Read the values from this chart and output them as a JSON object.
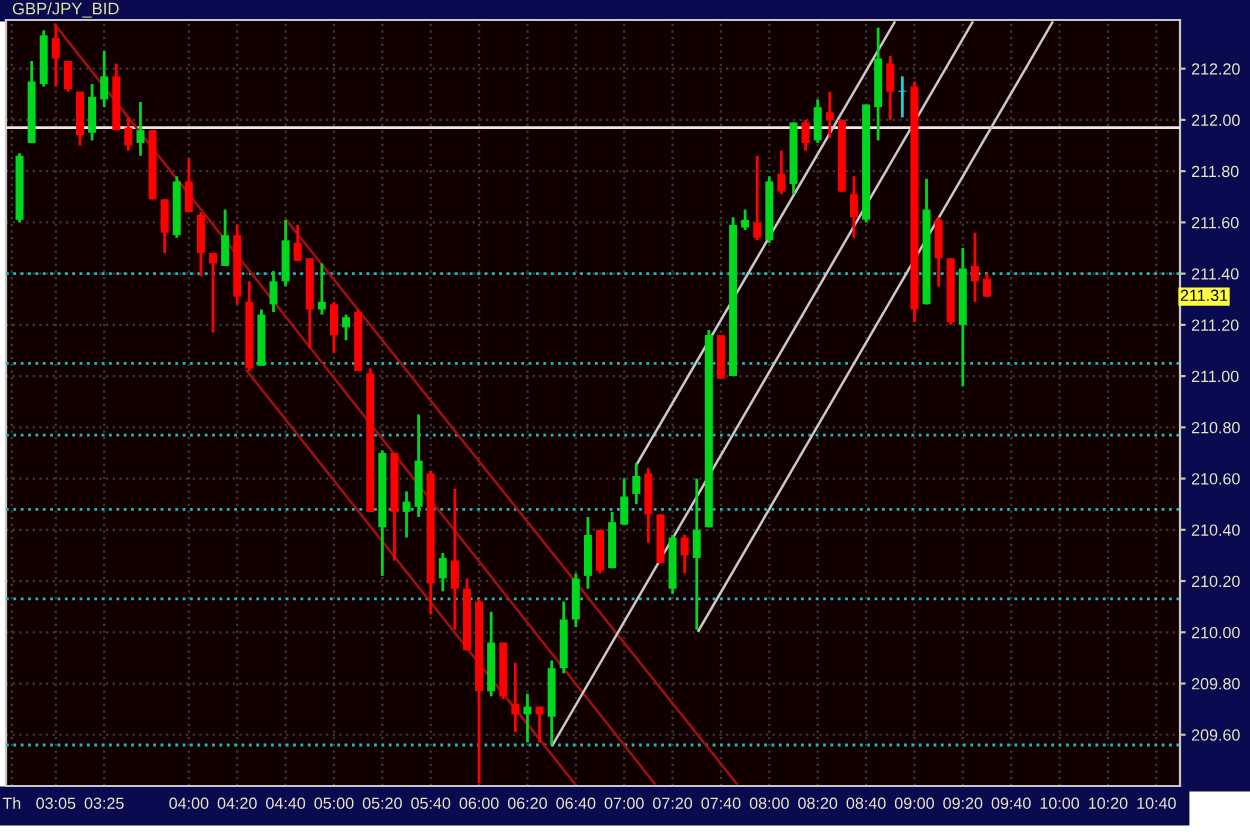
{
  "chart_data": {
    "type": "candlestick",
    "title": "GBP/JPY_BID",
    "x": [
      2.8333,
      2.9167,
      3.0,
      3.0833,
      3.1667,
      3.25,
      3.3333,
      3.4167,
      3.5,
      3.5833,
      3.6667,
      3.75,
      3.8333,
      3.9167,
      4.0,
      4.0833,
      4.1667,
      4.25,
      4.3333,
      4.4167,
      4.5,
      4.5833,
      4.6667,
      4.75,
      4.8333,
      4.9167,
      5.0,
      5.0833,
      5.1667,
      5.25,
      5.3333,
      5.4167,
      5.5,
      5.5833,
      5.6667,
      5.75,
      5.8333,
      5.9167,
      6.0,
      6.0833,
      6.1667,
      6.25,
      6.3333,
      6.4167,
      6.5,
      6.5833,
      6.6667,
      6.75,
      6.8333,
      6.9167,
      7.0,
      7.0833,
      7.1667,
      7.25,
      7.3333,
      7.4167,
      7.5,
      7.5833,
      7.6667,
      7.75,
      7.8333,
      7.9167,
      8.0,
      8.0833,
      8.1667,
      8.25,
      8.3333,
      8.4167,
      8.5,
      8.5833,
      8.6667,
      8.75,
      8.8333,
      8.9167,
      9.0,
      9.0833,
      9.1667,
      9.25,
      9.3333,
      9.4167,
      9.5
    ],
    "ohlc": [
      [
        211.61,
        211.87,
        211.6,
        211.86
      ],
      [
        211.91,
        212.23,
        211.91,
        212.15
      ],
      [
        212.14,
        212.35,
        212.13,
        212.33
      ],
      [
        212.32,
        212.37,
        212.13,
        212.24
      ],
      [
        212.23,
        212.23,
        212.11,
        212.12
      ],
      [
        212.11,
        212.11,
        211.9,
        211.94
      ],
      [
        211.95,
        212.14,
        211.92,
        212.09
      ],
      [
        212.08,
        212.27,
        212.05,
        212.17
      ],
      [
        212.17,
        212.22,
        211.96,
        211.96
      ],
      [
        211.97,
        212.01,
        211.88,
        211.9
      ],
      [
        211.91,
        212.07,
        211.86,
        211.96
      ],
      [
        211.96,
        211.96,
        211.69,
        211.69
      ],
      [
        211.69,
        211.69,
        211.48,
        211.56
      ],
      [
        211.55,
        211.78,
        211.54,
        211.76
      ],
      [
        211.76,
        211.85,
        211.64,
        211.64
      ],
      [
        211.63,
        211.64,
        211.39,
        211.48
      ],
      [
        211.48,
        211.48,
        211.17,
        211.44
      ],
      [
        211.43,
        211.65,
        211.43,
        211.55
      ],
      [
        211.55,
        211.59,
        211.28,
        211.31
      ],
      [
        211.29,
        211.37,
        211.02,
        211.03
      ],
      [
        211.04,
        211.26,
        211.04,
        211.24
      ],
      [
        211.28,
        211.41,
        211.25,
        211.37
      ],
      [
        211.37,
        211.61,
        211.35,
        211.53
      ],
      [
        211.52,
        211.59,
        211.45,
        211.45
      ],
      [
        211.46,
        211.46,
        211.11,
        211.26
      ],
      [
        211.26,
        211.44,
        211.24,
        211.29
      ],
      [
        211.28,
        211.29,
        211.09,
        211.16
      ],
      [
        211.19,
        211.24,
        211.14,
        211.23
      ],
      [
        211.25,
        211.26,
        211.02,
        211.02
      ],
      [
        211.01,
        211.03,
        210.47,
        210.47
      ],
      [
        210.41,
        210.71,
        210.22,
        210.7
      ],
      [
        210.7,
        210.7,
        210.28,
        210.47
      ],
      [
        210.47,
        210.55,
        210.37,
        210.51
      ],
      [
        210.49,
        210.85,
        210.45,
        210.67
      ],
      [
        210.62,
        210.63,
        210.07,
        210.19
      ],
      [
        210.21,
        210.31,
        210.16,
        210.29
      ],
      [
        210.28,
        210.56,
        210.01,
        210.17
      ],
      [
        210.17,
        210.21,
        209.93,
        209.93
      ],
      [
        210.12,
        210.13,
        209.41,
        209.77
      ],
      [
        209.77,
        210.08,
        209.75,
        209.96
      ],
      [
        209.96,
        209.96,
        209.74,
        209.75
      ],
      [
        209.72,
        209.88,
        209.61,
        209.68
      ],
      [
        209.68,
        209.76,
        209.57,
        209.71
      ],
      [
        209.71,
        209.71,
        209.57,
        209.68
      ],
      [
        209.67,
        209.89,
        209.56,
        209.86
      ],
      [
        209.86,
        210.12,
        209.84,
        210.05
      ],
      [
        210.05,
        210.23,
        210.02,
        210.21
      ],
      [
        210.22,
        210.45,
        210.17,
        210.38
      ],
      [
        210.4,
        210.4,
        210.23,
        210.24
      ],
      [
        210.25,
        210.47,
        210.25,
        210.43
      ],
      [
        210.42,
        210.6,
        210.42,
        210.53
      ],
      [
        210.54,
        210.66,
        210.5,
        210.61
      ],
      [
        210.62,
        210.64,
        210.35,
        210.46
      ],
      [
        210.46,
        210.46,
        210.27,
        210.27
      ],
      [
        210.17,
        210.38,
        210.15,
        210.37
      ],
      [
        210.37,
        210.38,
        210.23,
        210.3
      ],
      [
        210.29,
        210.6,
        210.01,
        210.4
      ],
      [
        210.41,
        211.18,
        210.41,
        211.16
      ],
      [
        211.16,
        211.16,
        210.99,
        210.99
      ],
      [
        211.0,
        211.62,
        211.0,
        211.59
      ],
      [
        211.58,
        211.65,
        211.57,
        211.61
      ],
      [
        211.6,
        211.86,
        211.53,
        211.54
      ],
      [
        211.53,
        211.78,
        211.52,
        211.76
      ],
      [
        211.79,
        211.88,
        211.71,
        211.72
      ],
      [
        211.75,
        211.99,
        211.71,
        211.99
      ],
      [
        211.99,
        212.0,
        211.88,
        211.91
      ],
      [
        211.92,
        212.08,
        211.91,
        212.05
      ],
      [
        212.03,
        212.11,
        211.93,
        212.0
      ],
      [
        212.0,
        212.0,
        211.72,
        211.72
      ],
      [
        211.71,
        211.78,
        211.54,
        211.62
      ],
      [
        211.61,
        212.06,
        211.6,
        212.06
      ],
      [
        212.05,
        212.36,
        211.92,
        212.24
      ],
      [
        212.22,
        212.25,
        212.0,
        212.11
      ],
      [
        212.11,
        212.17,
        212.01,
        212.11
      ],
      [
        212.13,
        212.15,
        211.21,
        211.26
      ],
      [
        211.28,
        211.77,
        211.28,
        211.65
      ],
      [
        211.61,
        211.62,
        211.35,
        211.46
      ],
      [
        211.46,
        211.46,
        211.2,
        211.21
      ],
      [
        211.2,
        211.5,
        210.96,
        211.42
      ],
      [
        211.43,
        211.56,
        211.29,
        211.37
      ],
      [
        211.38,
        211.4,
        211.31,
        211.31
      ]
    ],
    "colors": [
      "#00d820",
      "#00d820",
      "#00d820",
      "#ff0000",
      "#ff0000",
      "#ff0000",
      "#00d820",
      "#00d820",
      "#ff0000",
      "#ff0000",
      "#00d820",
      "#ff0000",
      "#ff0000",
      "#00d820",
      "#ff0000",
      "#ff0000",
      "#ff0000",
      "#00d820",
      "#ff0000",
      "#ff0000",
      "#00d820",
      "#00d820",
      "#00d820",
      "#ff0000",
      "#ff0000",
      "#00d820",
      "#ff0000",
      "#00d820",
      "#ff0000",
      "#ff0000",
      "#00d820",
      "#ff0000",
      "#00d820",
      "#00d820",
      "#ff0000",
      "#00d820",
      "#ff0000",
      "#ff0000",
      "#ff0000",
      "#00d820",
      "#ff0000",
      "#ff0000",
      "#00d820",
      "#ff0000",
      "#00d820",
      "#00d820",
      "#00d820",
      "#00d820",
      "#ff0000",
      "#00d820",
      "#00d820",
      "#00d820",
      "#ff0000",
      "#ff0000",
      "#00d820",
      "#ff0000",
      "#00d820",
      "#00d820",
      "#ff0000",
      "#00d820",
      "#00d820",
      "#ff0000",
      "#00d820",
      "#ff0000",
      "#00d820",
      "#ff0000",
      "#00d820",
      "#ff0000",
      "#ff0000",
      "#ff0000",
      "#00d820",
      "#00d820",
      "#ff0000",
      "#20d0d0",
      "#ff0000",
      "#00d820",
      "#ff0000",
      "#ff0000",
      "#00d820",
      "#ff0000",
      "#ff0000"
    ],
    "series": [
      {
        "type": "line",
        "color": "#a01010",
        "x": [
          4.675,
          7.774
        ],
        "values": [
          211.607,
          209.41
        ]
      },
      {
        "type": "line",
        "color": "#a01010",
        "x": [
          3.077,
          7.209
        ],
        "values": [
          212.372,
          209.41
        ]
      },
      {
        "type": "line",
        "color": "#a01010",
        "x": [
          4.399,
          6.658
        ],
        "values": [
          211.021,
          209.41
        ]
      },
      {
        "type": "line",
        "color": "#c8c8c8",
        "x": [
          6.507,
          9.399
        ],
        "values": [
          209.561,
          212.38
        ]
      },
      {
        "type": "line",
        "color": "#c8c8c8",
        "x": [
          7.085,
          8.862
        ],
        "values": [
          210.654,
          212.38
        ]
      },
      {
        "type": "line",
        "color": "#c8c8c8",
        "x": [
          7.512,
          9.95
        ],
        "values": [
          210.006,
          212.38
        ]
      }
    ],
    "ref_lines": [
      {
        "axis": "y",
        "value": 211.97,
        "color": "#e8e8e8",
        "line_style": "solid"
      },
      {
        "axis": "y",
        "value": 211.4,
        "color": "#20b8b8",
        "line_style": "dotted"
      },
      {
        "axis": "y",
        "value": 211.05,
        "color": "#20b8b8",
        "line_style": "dotted"
      },
      {
        "axis": "y",
        "value": 210.77,
        "color": "#20b8b8",
        "line_style": "dotted"
      },
      {
        "axis": "y",
        "value": 210.48,
        "color": "#20b8b8",
        "line_style": "dotted"
      },
      {
        "axis": "y",
        "value": 210.13,
        "color": "#20b8b8",
        "line_style": "dotted"
      },
      {
        "axis": "y",
        "value": 209.56,
        "color": "#20b8b8",
        "line_style": "dotted"
      }
    ],
    "annotations": [
      "211.31"
    ],
    "xlim": [
      2.74,
      10.83
    ],
    "xticks": [
      {
        "value": 2.78,
        "label": "Th"
      },
      {
        "value": 3.0833,
        "label": "03:05"
      },
      {
        "value": 3.4167,
        "label": "03:25"
      },
      {
        "value": 4.0,
        "label": "04:00"
      },
      {
        "value": 4.3333,
        "label": "04:20"
      },
      {
        "value": 4.6667,
        "label": "04:40"
      },
      {
        "value": 5.0,
        "label": "05:00"
      },
      {
        "value": 5.3333,
        "label": "05:20"
      },
      {
        "value": 5.6667,
        "label": "05:40"
      },
      {
        "value": 6.0,
        "label": "06:00"
      },
      {
        "value": 6.3333,
        "label": "06:20"
      },
      {
        "value": 6.6667,
        "label": "06:40"
      },
      {
        "value": 7.0,
        "label": "07:00"
      },
      {
        "value": 7.3333,
        "label": "07:20"
      },
      {
        "value": 7.6667,
        "label": "07:40"
      },
      {
        "value": 8.0,
        "label": "08:00"
      },
      {
        "value": 8.3333,
        "label": "08:20"
      },
      {
        "value": 8.6667,
        "label": "08:40"
      },
      {
        "value": 9.0,
        "label": "09:00"
      },
      {
        "value": 9.3333,
        "label": "09:20"
      },
      {
        "value": 9.6667,
        "label": "09:40"
      },
      {
        "value": 10.0,
        "label": "10:00"
      },
      {
        "value": 10.3333,
        "label": "10:20"
      },
      {
        "value": 10.6667,
        "label": "10:40"
      }
    ],
    "ylim": [
      209.4,
      212.39
    ],
    "yticks": [
      {
        "value": 209.6,
        "label": "209.60"
      },
      {
        "value": 209.8,
        "label": "209.80"
      },
      {
        "value": 210.0,
        "label": "210.00"
      },
      {
        "value": 210.2,
        "label": "210.20"
      },
      {
        "value": 210.4,
        "label": "210.40"
      },
      {
        "value": 210.6,
        "label": "210.60"
      },
      {
        "value": 210.8,
        "label": "210.80"
      },
      {
        "value": 211.0,
        "label": "211.00"
      },
      {
        "value": 211.2,
        "label": "211.20"
      },
      {
        "value": 211.4,
        "label": "211.40"
      },
      {
        "value": 211.6,
        "label": "211.60"
      },
      {
        "value": 211.8,
        "label": "211.80"
      },
      {
        "value": 212.0,
        "label": "212.00"
      },
      {
        "value": 212.2,
        "label": "212.20"
      }
    ],
    "grid": true
  }
}
